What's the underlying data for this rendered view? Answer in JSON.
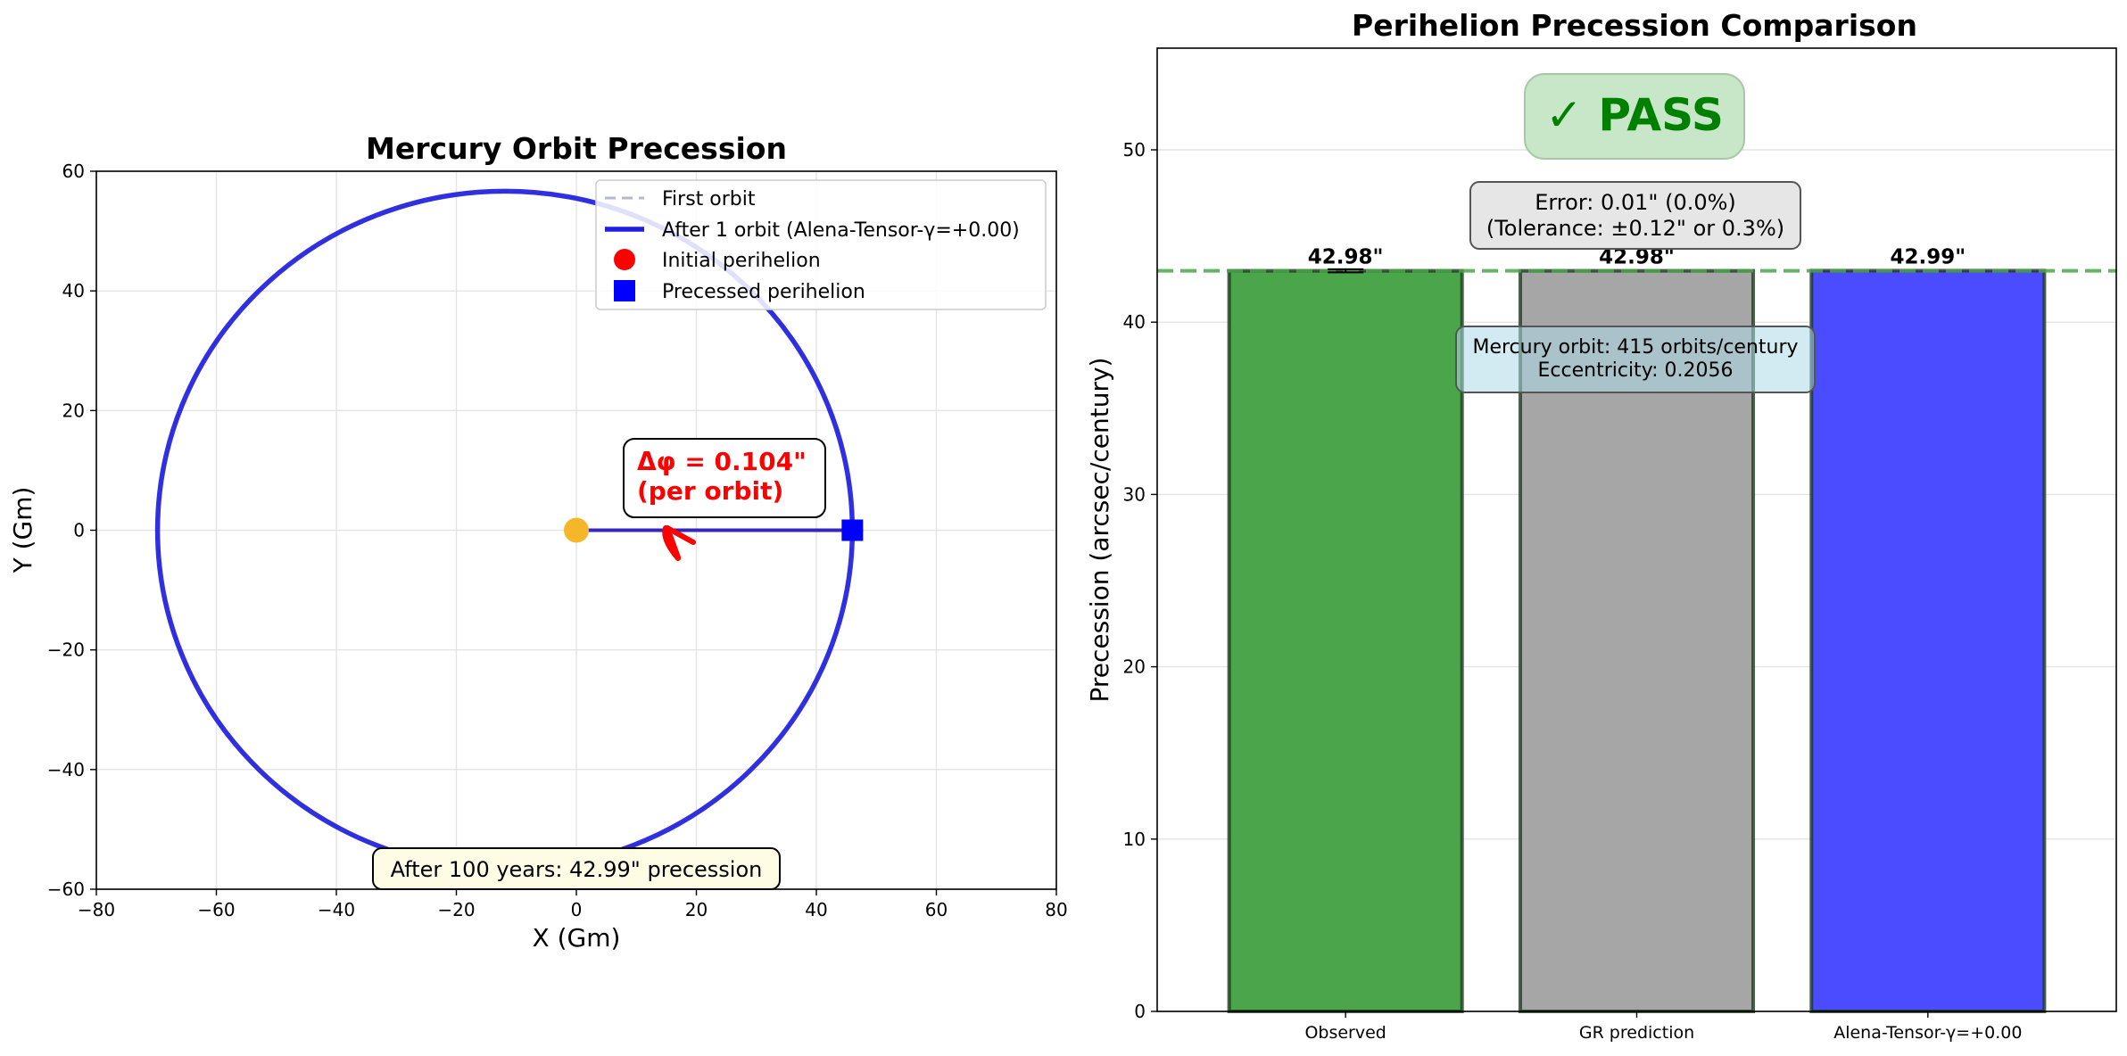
{
  "chart_data": [
    {
      "type": "scatter",
      "title": "Mercury Orbit Precession",
      "xlabel": "X (Gm)",
      "ylabel": "Y (Gm)",
      "xlim": [
        -80,
        80
      ],
      "ylim": [
        -60,
        60
      ],
      "xticks": [
        -80,
        -60,
        -40,
        -20,
        0,
        20,
        40,
        60,
        80
      ],
      "yticks": [
        -60,
        -40,
        -20,
        0,
        20,
        40,
        60
      ],
      "xtick_labels": [
        "−80",
        "−60",
        "−40",
        "−20",
        "0",
        "20",
        "40",
        "60",
        "80"
      ],
      "ytick_labels": [
        "−60",
        "−40",
        "−20",
        "0",
        "20",
        "40",
        "60"
      ],
      "grid": true,
      "legend_position": "top-right",
      "orbit": {
        "semi_major_axis": 57.9,
        "eccentricity": 0.2056,
        "center_x": -11.9,
        "center_y": 0,
        "perihelion_x": 46.0,
        "aphelion_x": -69.8
      },
      "sun": {
        "x": 0,
        "y": 0,
        "color": "#F5B62A"
      },
      "initial_perihelion": {
        "x": 46.0,
        "y": 0
      },
      "precessed_perihelion": {
        "x": 46.0,
        "y": 0
      },
      "series": [
        {
          "name": "First orbit",
          "style": "dashed",
          "color": "#B8B8C8"
        },
        {
          "name": "After 1 orbit (Alena-Tensor-γ=+0.00)",
          "style": "solid",
          "color": "#1F1FE0"
        },
        {
          "name": "Initial perihelion",
          "marker": "circle",
          "color": "#FF0000"
        },
        {
          "name": "Precessed perihelion",
          "marker": "square",
          "color": "#0000FF"
        }
      ],
      "annotations": {
        "delta_phi_line1": "Δφ = 0.104\"",
        "delta_phi_line2": "(per orbit)",
        "delta_phi_anchor": {
          "x": 10,
          "y": 8.5
        },
        "bottom_note": "After 100 years: 42.99\" precession",
        "bottom_note_anchor": {
          "x": 0,
          "y": -56.3
        }
      }
    },
    {
      "type": "bar",
      "title": "Perihelion Precession Comparison",
      "ylabel": "Precession (arcsec/century)",
      "categories": [
        "Observed",
        "GR prediction",
        "Alena-Tensor-γ=+0.00"
      ],
      "values": [
        42.98,
        42.98,
        42.99
      ],
      "value_labels": [
        "42.98\"",
        "42.98\"",
        "42.99\""
      ],
      "colors": [
        "#4BA64B",
        "#A6A6A6",
        "#4B4BFF"
      ],
      "observed_error": 0.04,
      "reference_line": 42.98,
      "ylim": [
        0,
        55.9
      ],
      "yticks": [
        0,
        10,
        20,
        30,
        40,
        50
      ],
      "grid": true,
      "status": "✓ PASS",
      "status_anchor": {
        "x": 1,
        "y": 51.3
      },
      "error_line1": "Error: 0.01\" (0.0%)",
      "error_line2": "(Tolerance: ±0.12\" or 0.3%)",
      "error_anchor": {
        "x": 1,
        "y": 45.9
      },
      "info_line1": "Mercury orbit: 415 orbits/century",
      "info_line2": "Eccentricity: 0.2056",
      "info_anchor": {
        "x": 1,
        "y": 37.6
      }
    }
  ]
}
